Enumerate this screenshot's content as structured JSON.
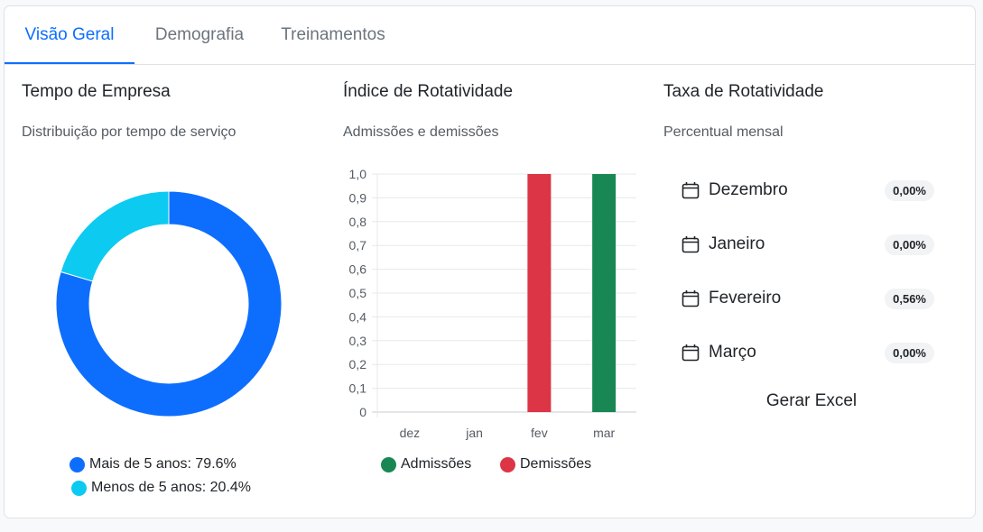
{
  "tabs": [
    "Visão Geral",
    "Demografia",
    "Treinamentos"
  ],
  "tenure": {
    "title": "Tempo de Empresa",
    "subtitle": "Distribuição por tempo de serviço",
    "legend": [
      "Mais de 5 anos: 79.6%",
      "Menos de 5 anos: 20.4%"
    ]
  },
  "turnover_index": {
    "title": "Índice de Rotatividade",
    "subtitle": "Admissões e demissões",
    "legend": [
      "Admissões",
      "Demissões"
    ]
  },
  "turnover_rate": {
    "title": "Taxa de Rotatividade",
    "subtitle": "Percentual mensal",
    "months": [
      {
        "name": "Dezembro",
        "value": "0,00%"
      },
      {
        "name": "Janeiro",
        "value": "0,00%"
      },
      {
        "name": "Fevereiro",
        "value": "0,56%"
      },
      {
        "name": "Março",
        "value": "0,00%"
      }
    ],
    "excel_button": "Gerar Excel"
  },
  "colors": {
    "accent": "#0d6efd",
    "cyan": "#0dcaf0",
    "green": "#198754",
    "red": "#dc3545"
  },
  "chart_data": [
    {
      "type": "pie",
      "categories": [
        "Mais de 5 anos",
        "Menos de 5 anos"
      ],
      "values": [
        79.6,
        20.4
      ],
      "colors": [
        "#0d6efd",
        "#0dcaf0"
      ]
    },
    {
      "type": "bar",
      "categories": [
        "dez",
        "jan",
        "fev",
        "mar"
      ],
      "series": [
        {
          "name": "Admissões",
          "values": [
            0,
            0,
            0,
            1
          ],
          "color": "#198754"
        },
        {
          "name": "Demissões",
          "values": [
            0,
            0,
            1,
            0
          ],
          "color": "#dc3545"
        }
      ],
      "yticks": [
        "0",
        "0,1",
        "0,2",
        "0,3",
        "0,4",
        "0,5",
        "0,6",
        "0,7",
        "0,8",
        "0,9",
        "1,0"
      ],
      "ylim": [
        0,
        1
      ],
      "grid": true
    }
  ]
}
